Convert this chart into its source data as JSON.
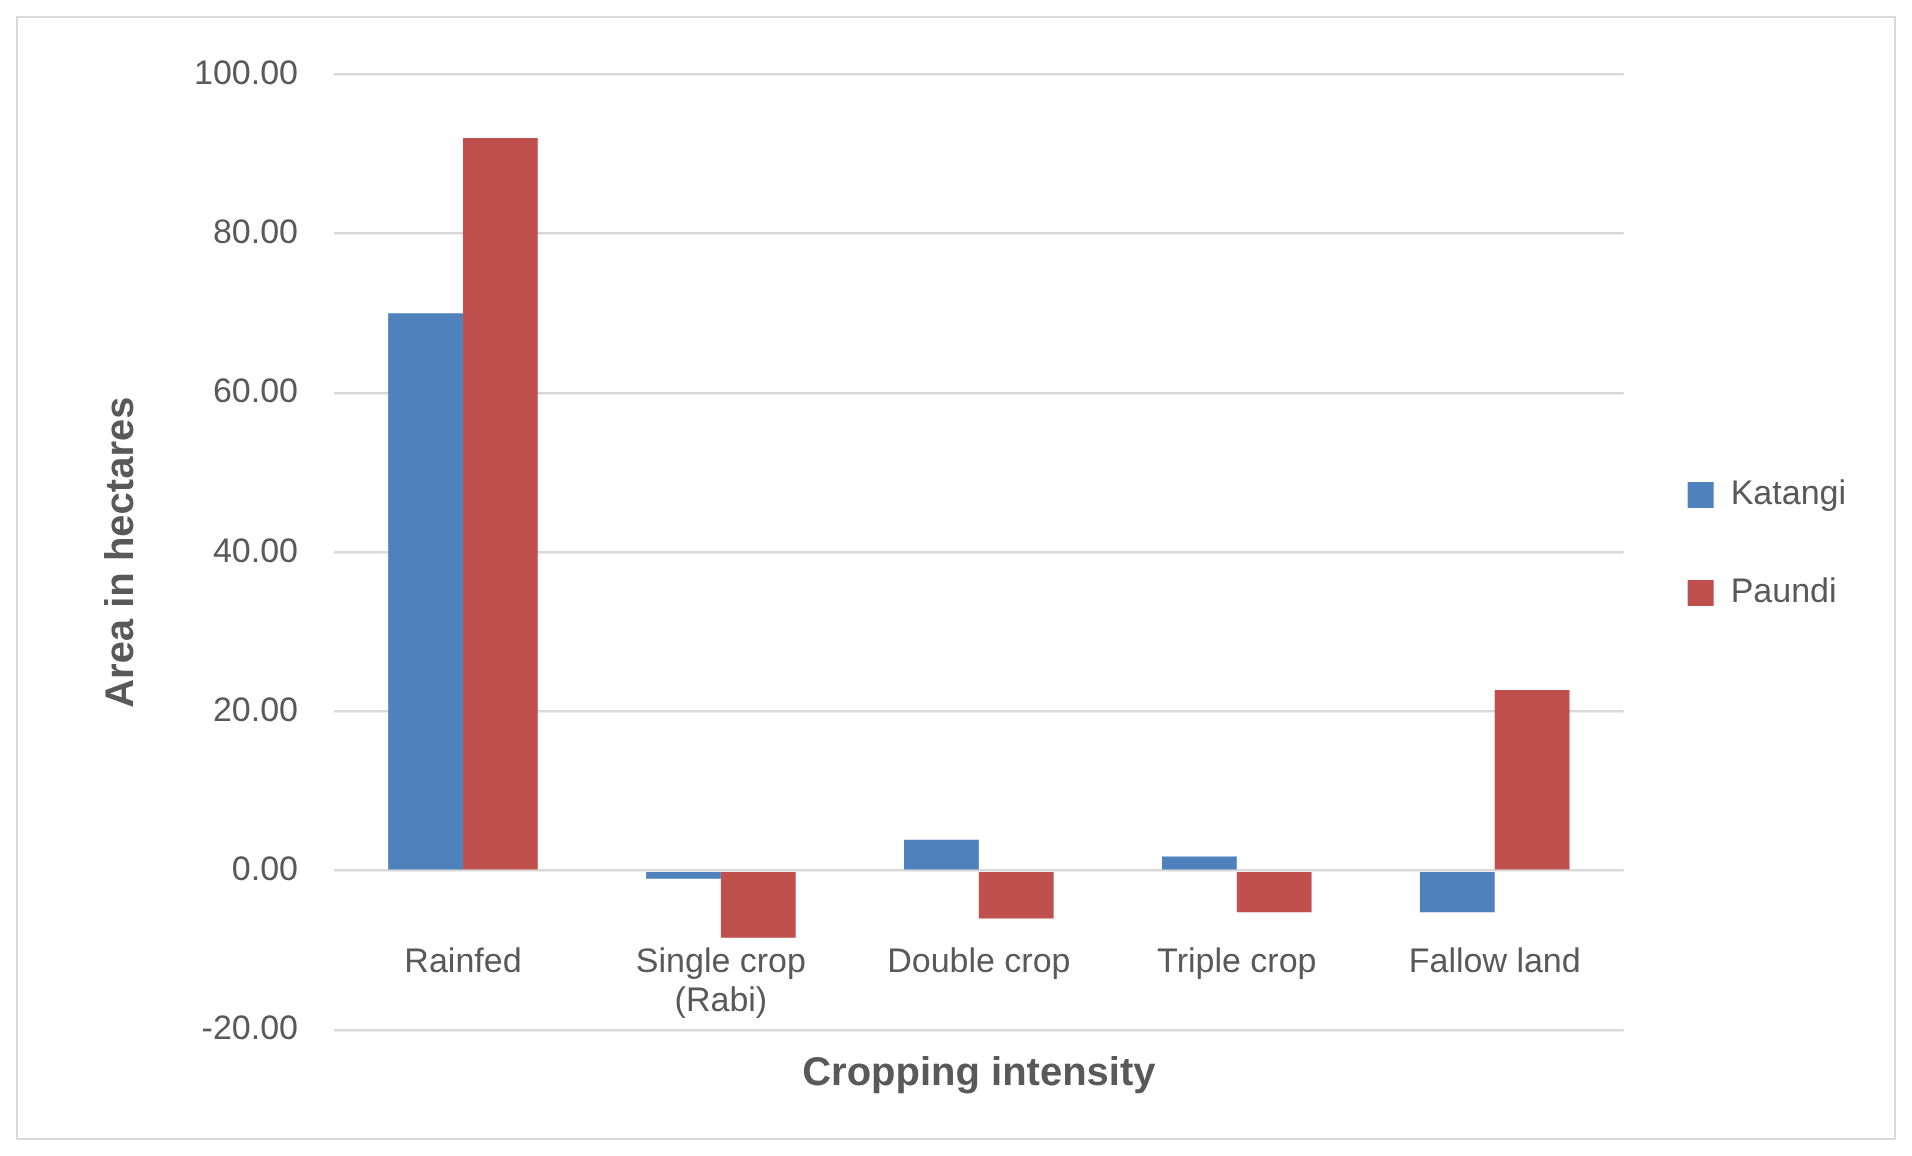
{
  "chart_data": {
    "type": "bar",
    "xlabel": "Cropping intensity",
    "ylabel": "Area in hectares",
    "categories": [
      "Rainfed",
      "Single crop (Rabi)",
      "Double crop",
      "Triple crop",
      "Fallow land"
    ],
    "series": [
      {
        "name": "Katangi",
        "color": "#4f81bd",
        "values": [
          70,
          -1,
          3.9,
          1.8,
          -5.2
        ]
      },
      {
        "name": "Paundi",
        "color": "#c0504d",
        "values": [
          92,
          -8.4,
          -6,
          -5.2,
          22.7
        ]
      }
    ],
    "ylim": [
      -20,
      100
    ],
    "yticks": [
      {
        "value": -20,
        "label": "-20.00"
      },
      {
        "value": 0,
        "label": "0.00"
      },
      {
        "value": 20,
        "label": "20.00"
      },
      {
        "value": 40,
        "label": "40.00"
      },
      {
        "value": 60,
        "label": "60.00"
      },
      {
        "value": 80,
        "label": "80.00"
      },
      {
        "value": 100,
        "label": "100.00"
      }
    ],
    "grid": "y",
    "legend": "right"
  }
}
